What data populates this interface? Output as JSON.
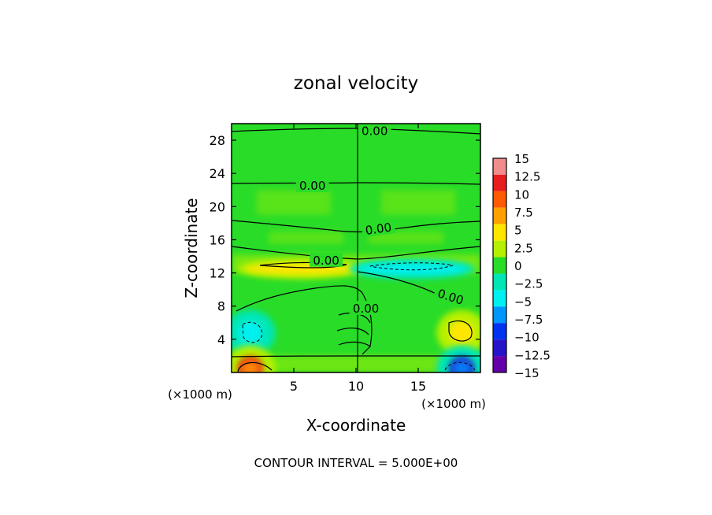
{
  "chart_data": {
    "type": "heatmap",
    "title": "zonal velocity",
    "xlabel": "X-coordinate",
    "ylabel": "Z-coordinate",
    "x_unit_left": "(×1000 m)",
    "x_unit_right": "(×1000 m)",
    "xlim": [
      0,
      20
    ],
    "ylim": [
      0,
      30
    ],
    "x_ticks": [
      5,
      10,
      15
    ],
    "y_ticks": [
      4,
      8,
      12,
      16,
      20,
      24,
      28
    ],
    "footer": "CONTOUR INTERVAL = 5.000E+00",
    "contour_labels": [
      "0.00",
      "0.00",
      "0.00",
      "0.00",
      "0.00",
      "0.00"
    ],
    "colorbar": {
      "levels": [
        15,
        12.5,
        10,
        7.5,
        5,
        2.5,
        0,
        -2.5,
        -5,
        -7.5,
        -10,
        -12.5,
        -15
      ],
      "level_labels": [
        "15",
        "12.5",
        "10",
        "7.5",
        "5",
        "2.5",
        "0",
        "−2.5",
        "−5",
        "−7.5",
        "−10",
        "−12.5",
        "−15"
      ],
      "colors": [
        "#f08c8c",
        "#e81e1e",
        "#ff5a00",
        "#ffa000",
        "#ffe600",
        "#b4f000",
        "#28dc28",
        "#00e6b4",
        "#00f0f0",
        "#0096ff",
        "#0032f0",
        "#2814c8",
        "#6400aa"
      ]
    },
    "features": [
      {
        "name": "upper-jet-positive",
        "x": 5.5,
        "z": 12.5,
        "value": 5
      },
      {
        "name": "upper-jet-negative",
        "x": 14.5,
        "z": 12.5,
        "value": -5
      },
      {
        "name": "mid-negative-cell",
        "x": 1.5,
        "z": 4.8,
        "value": -5
      },
      {
        "name": "mid-positive-cell",
        "x": 18.5,
        "z": 4.8,
        "value": 5
      },
      {
        "name": "surface-positive-cell",
        "x": 1.5,
        "z": 0.5,
        "value": 12.5
      },
      {
        "name": "surface-negative-cell",
        "x": 18.5,
        "z": 0.5,
        "value": -12.5
      }
    ]
  }
}
